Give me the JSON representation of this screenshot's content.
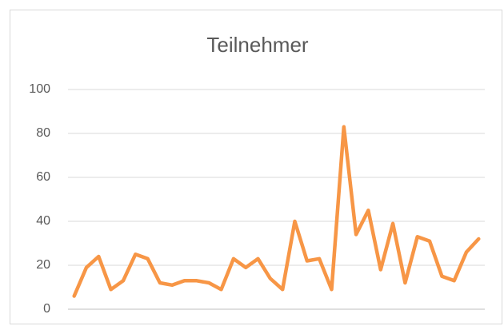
{
  "chart_data": {
    "type": "line",
    "title": "Teilnehmer",
    "categories": [
      null,
      null,
      null,
      null,
      null,
      null,
      null,
      null,
      null,
      null,
      null,
      null,
      null,
      null,
      null,
      null,
      null,
      null,
      null,
      null,
      null,
      null,
      null,
      null,
      null,
      null,
      null,
      null,
      null,
      null,
      null,
      null,
      null,
      null
    ],
    "values": [
      6,
      19,
      24,
      9,
      13,
      25,
      23,
      12,
      11,
      13,
      13,
      12,
      9,
      23,
      19,
      23,
      14,
      9,
      40,
      22,
      23,
      9,
      83,
      34,
      45,
      18,
      39,
      12,
      33,
      31,
      15,
      13,
      26,
      32
    ],
    "color": "#f79646",
    "ylim": [
      0,
      100
    ],
    "yticks": [
      0,
      20,
      40,
      60,
      80,
      100
    ],
    "grid": true
  }
}
